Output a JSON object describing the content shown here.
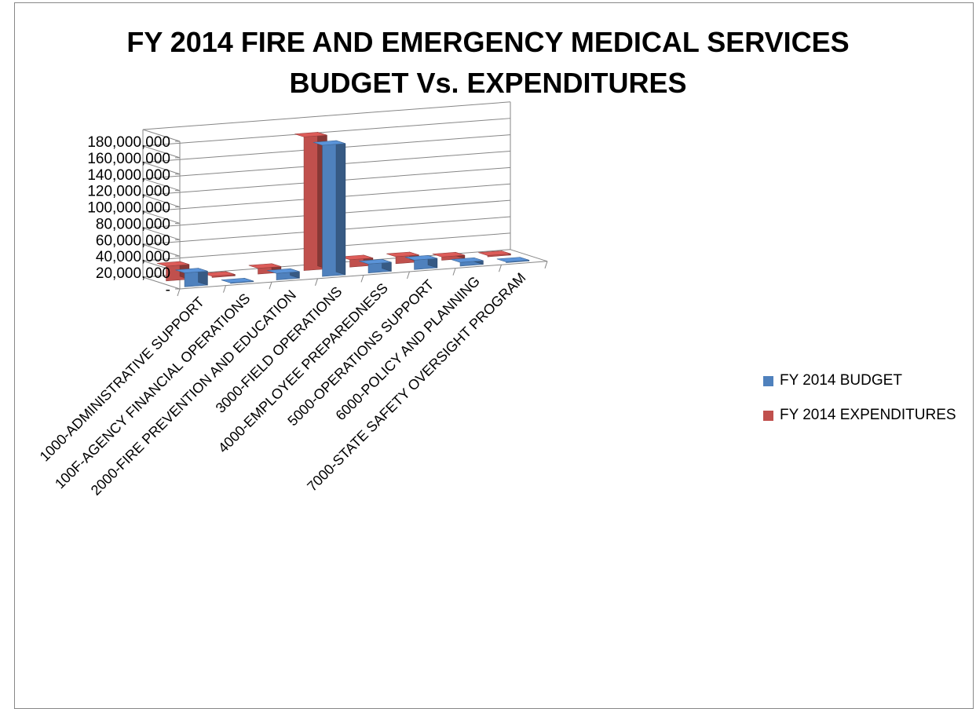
{
  "chart_data": {
    "type": "bar",
    "title_line1": "FY 2014 FIRE AND EMERGENCY MEDICAL SERVICES",
    "title_line2": "BUDGET Vs. EXPENDITURES",
    "categories": [
      "1000-ADMINISTRATIVE SUPPORT",
      "100F-AGENCY FINANCIAL OPERATIONS",
      "2000-FIRE PREVENTION AND EDUCATION",
      "3000-FIELD OPERATIONS",
      "4000-EMPLOYEE PREPAREDNESS",
      "5000-OPERATIONS SUPPORT",
      "6000-POLICY AND PLANNING",
      "7000-STATE SAFETY OVERSIGHT PROGRAM"
    ],
    "series": [
      {
        "name": "FY 2014 BUDGET",
        "color": "#4f81bd",
        "values": [
          17000000,
          600000,
          8000000,
          160000000,
          11000000,
          11500000,
          4500000,
          900000
        ]
      },
      {
        "name": "FY 2014 EXPENDITURES",
        "color": "#c0504d",
        "values": [
          18000000,
          1500000,
          7000000,
          163000000,
          9000000,
          8500000,
          4000000,
          1500000
        ]
      }
    ],
    "y_ticks": [
      "-",
      "20,000,000",
      "40,000,000",
      "60,000,000",
      "80,000,000",
      "100,000,000",
      "120,000,000",
      "140,000,000",
      "160,000,000",
      "180,000,000"
    ],
    "ylim": [
      0,
      180000000
    ],
    "grid": true,
    "legend_position": "right"
  }
}
